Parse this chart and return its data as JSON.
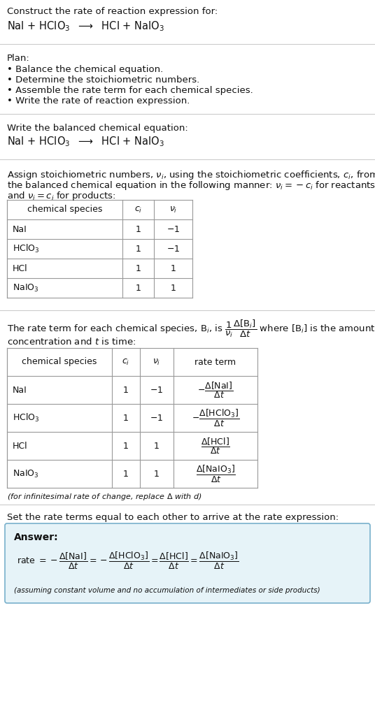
{
  "title_line1": "Construct the rate of reaction expression for:",
  "eq1": "NaI + HClO$_3$  $\\longrightarrow$  HCl + NaIO$_3$",
  "plan_header": "Plan:",
  "plan_items": [
    "• Balance the chemical equation.",
    "• Determine the stoichiometric numbers.",
    "• Assemble the rate term for each chemical species.",
    "• Write the rate of reaction expression."
  ],
  "section2_header": "Write the balanced chemical equation:",
  "assign_line1": "Assign stoichiometric numbers, $\\nu_i$, using the stoichiometric coefficients, $c_i$, from",
  "assign_line2": "the balanced chemical equation in the following manner: $\\nu_i = -c_i$ for reactants",
  "assign_line3": "and $\\nu_i = c_i$ for products:",
  "table1_headers": [
    "chemical species",
    "$c_i$",
    "$\\nu_i$"
  ],
  "table1_data": [
    [
      "NaI",
      "1",
      "$-1$"
    ],
    [
      "HClO$_3$",
      "1",
      "$-1$"
    ],
    [
      "HCl",
      "1",
      "1"
    ],
    [
      "NaIO$_3$",
      "1",
      "1"
    ]
  ],
  "rate_line1": "The rate term for each chemical species, B$_i$, is $\\dfrac{1}{\\nu_i}\\dfrac{\\Delta[\\mathrm{B}_i]}{\\Delta t}$ where [B$_i$] is the amount",
  "rate_line2": "concentration and $t$ is time:",
  "table2_headers": [
    "chemical species",
    "$c_i$",
    "$\\nu_i$",
    "rate term"
  ],
  "table2_data": [
    [
      "NaI",
      "1",
      "$-1$",
      "$-\\dfrac{\\Delta[\\mathrm{NaI}]}{\\Delta t}$"
    ],
    [
      "HClO$_3$",
      "1",
      "$-1$",
      "$-\\dfrac{\\Delta[\\mathrm{HClO_3}]}{\\Delta t}$"
    ],
    [
      "HCl",
      "1",
      "1",
      "$\\dfrac{\\Delta[\\mathrm{HCl}]}{\\Delta t}$"
    ],
    [
      "NaIO$_3$",
      "1",
      "1",
      "$\\dfrac{\\Delta[\\mathrm{NaIO_3}]}{\\Delta t}$"
    ]
  ],
  "infinitesimal_note": "(for infinitesimal rate of change, replace $\\Delta$ with $d$)",
  "section5_header": "Set the rate terms equal to each other to arrive at the rate expression:",
  "answer_label": "Answer:",
  "rate_expr": "rate $= -\\dfrac{\\Delta[\\mathrm{NaI}]}{\\Delta t} = -\\dfrac{\\Delta[\\mathrm{HClO_3}]}{\\Delta t} = \\dfrac{\\Delta[\\mathrm{HCl}]}{\\Delta t} = \\dfrac{\\Delta[\\mathrm{NaIO_3}]}{\\Delta t}$",
  "footnote": "(assuming constant volume and no accumulation of intermediates or side products)",
  "bg_color": "#ffffff",
  "table_line_color": "#999999",
  "answer_box_bg": "#e6f3f8",
  "answer_box_border": "#78b0cc",
  "sep_color": "#cccccc",
  "text_color": "#111111"
}
